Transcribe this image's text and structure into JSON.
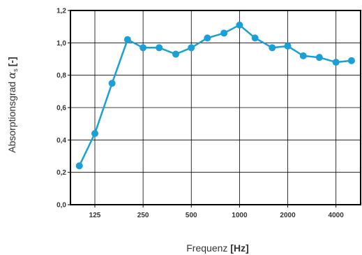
{
  "chart_data": {
    "type": "line",
    "x_scale": "log",
    "x": [
      100,
      125,
      160,
      200,
      250,
      315,
      400,
      500,
      630,
      800,
      1000,
      1250,
      1600,
      2000,
      2500,
      3150,
      4000,
      5000
    ],
    "series": [
      {
        "values": [
          0.24,
          0.44,
          0.75,
          1.02,
          0.97,
          0.97,
          0.93,
          0.97,
          1.03,
          1.06,
          1.11,
          1.03,
          0.97,
          0.98,
          0.92,
          0.91,
          0.88,
          0.89
        ]
      }
    ],
    "x_tick_labels": [
      "125",
      "250",
      "500",
      "1000",
      "2000",
      "4000"
    ],
    "y_tick_labels": [
      "0,0",
      "0,2",
      "0,4",
      "0,6",
      "0,8",
      "1,0",
      "1,2"
    ],
    "ylim": [
      0,
      1.2
    ],
    "xlabel": {
      "prefix": "Frequenz ",
      "unit": "[Hz]"
    },
    "ylabel": {
      "prefix": "Absorptionsgrad ",
      "symbol": "α",
      "subscript": "s",
      "unit": "[-]"
    },
    "grid": true,
    "colors": {
      "line": "#1a9fd6",
      "grid": "#000000",
      "axis": "#000000",
      "text": "#333333"
    }
  }
}
